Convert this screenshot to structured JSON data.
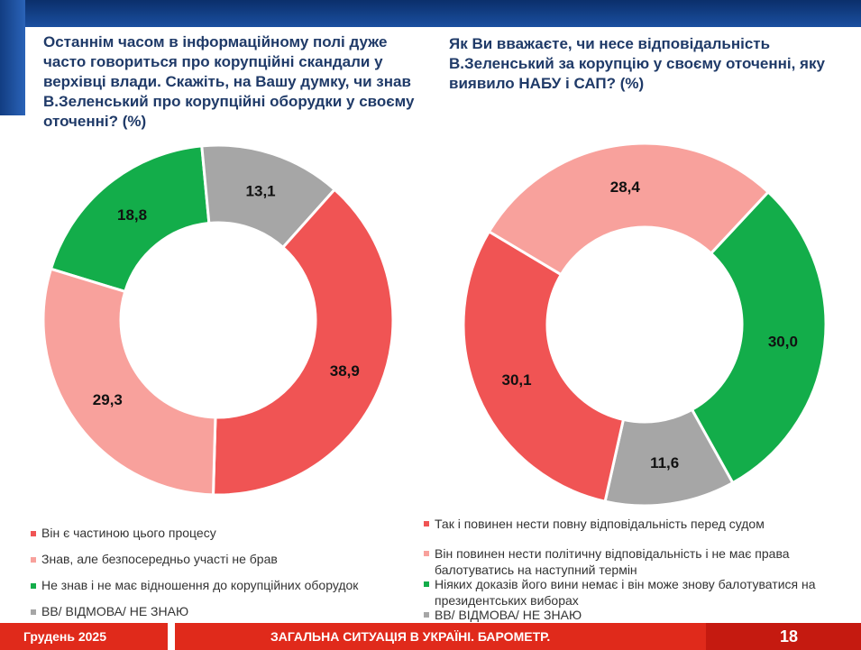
{
  "chart_data": [
    {
      "type": "donut",
      "title": "Останнім часом в інформаційному полі дуже часто говориться про корупційні скандали у верхівці влади. Скажіть, на Вашу думку, чи знав В.Зеленський про корупційні оборудки у своєму оточенні? (%)",
      "labels": [
        "Він є частиною цього процесу",
        "Знав, але безпосередньо участі не брав",
        "Не знав і не має відношення до корупційних оборудок",
        "ВВ/ ВІДМОВА/ НЕ ЗНАЮ"
      ],
      "values": [
        38.9,
        29.3,
        18.8,
        13.1
      ],
      "value_labels": [
        "38,9",
        "29,3",
        "18,8",
        "13,1"
      ],
      "colors": [
        "#f05454",
        "#f8a19c",
        "#13ad4a",
        "#a6a6a6"
      ]
    },
    {
      "type": "donut",
      "title": "Як Ви вважаєте, чи несе відповідальність В.Зеленський за корупцію у своєму оточенні, яку виявило НАБУ і САП? (%)",
      "labels": [
        "Так і повинен нести повну відповідальність перед судом",
        "Він повинен нести політичну відповідальність і не має права балотуватись на наступний термін",
        "Ніяких доказів його вини немає і він може знову балотуватися на президентських виборах",
        "ВВ/ ВІДМОВА/ НЕ ЗНАЮ"
      ],
      "values": [
        30.1,
        28.4,
        30.0,
        11.6
      ],
      "value_labels": [
        "30,1",
        "28,4",
        "30,0",
        "11,6"
      ],
      "colors": [
        "#f05454",
        "#f8a19c",
        "#13ad4a",
        "#a6a6a6"
      ]
    }
  ],
  "footer": {
    "date": "Грудень 2025",
    "center": "ЗАГАЛЬНА СИТУАЦІЯ В УКРАЇНІ. БАРОМЕТР.",
    "page": "18"
  }
}
